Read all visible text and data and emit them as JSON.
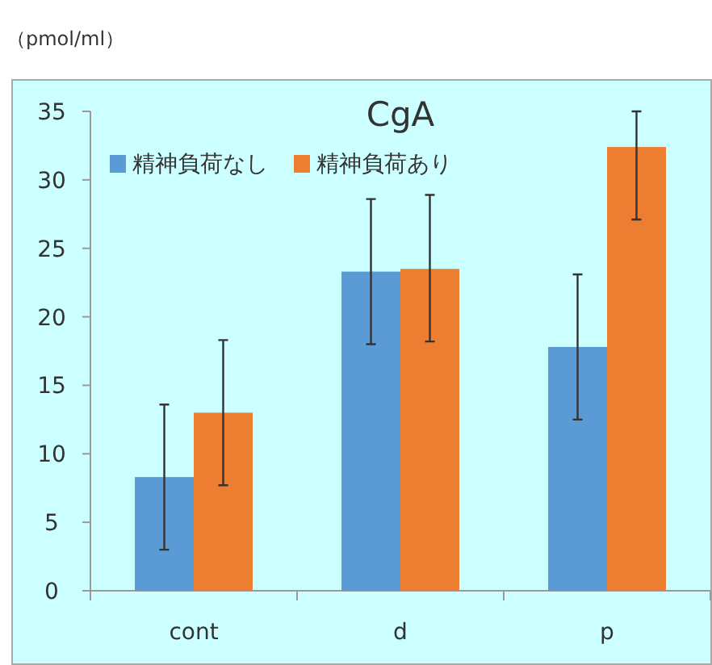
{
  "chart_data": {
    "type": "bar",
    "title": "CgA",
    "ylabel": "（pmol/ml）",
    "categories": [
      "cont",
      "d",
      "p"
    ],
    "series": [
      {
        "name": "精神負荷なし",
        "color": "#5b9bd5",
        "values": [
          8.3,
          23.3,
          17.8
        ],
        "errors": [
          [
            3.0,
            13.6
          ],
          [
            18.0,
            28.6
          ],
          [
            12.5,
            23.1
          ]
        ]
      },
      {
        "name": "精神負荷あり",
        "color": "#ed7d31",
        "values": [
          13.0,
          23.5,
          32.4
        ],
        "errors": [
          [
            7.7,
            18.3
          ],
          [
            18.2,
            28.9
          ],
          [
            27.1,
            35
          ]
        ]
      }
    ],
    "ylim": [
      0,
      35
    ],
    "yticks": [
      0,
      5,
      10,
      15,
      20,
      25,
      30,
      35
    ],
    "grid": false,
    "legend": "top left"
  }
}
